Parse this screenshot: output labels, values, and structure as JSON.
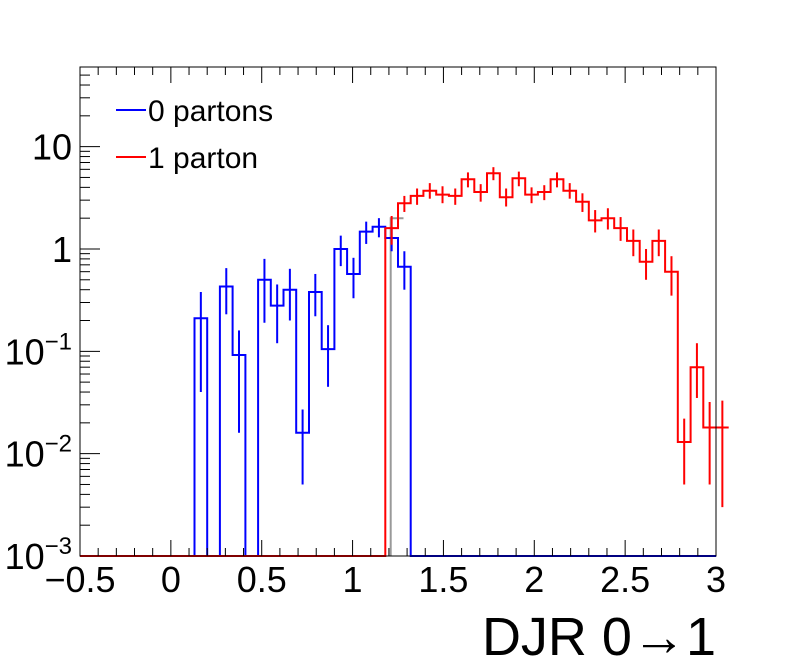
{
  "chart_data": {
    "type": "step-histogram",
    "xlabel": "DJR 0→1",
    "ylabel": "",
    "xlim": [
      -0.5,
      3.0
    ],
    "ylim": [
      0.001,
      60
    ],
    "yscale": "log",
    "grid": false,
    "legend_position": "top-left",
    "bin_width": 0.07,
    "x_ticks": [
      "−0.5",
      "0",
      "0.5",
      "1",
      "1.5",
      "2",
      "2.5",
      "3"
    ],
    "x_tick_values": [
      -0.5,
      0,
      0.5,
      1,
      1.5,
      2,
      2.5,
      3
    ],
    "y_ticks": [
      {
        "value": 0.001,
        "base": "10",
        "exp": "−3"
      },
      {
        "value": 0.01,
        "base": "10",
        "exp": "−2"
      },
      {
        "value": 0.1,
        "base": "10",
        "exp": "−1"
      },
      {
        "value": 1,
        "base": "1",
        "exp": ""
      },
      {
        "value": 10,
        "base": "10",
        "exp": ""
      }
    ],
    "series": [
      {
        "name": "0 partons",
        "color": "#0000ff",
        "x_start": -0.5,
        "values": [
          0.001,
          0.001,
          0.001,
          0.001,
          0.001,
          0.001,
          0.001,
          0.001,
          0.001,
          0.21,
          0.001,
          0.43,
          0.092,
          0.001,
          0.5,
          0.28,
          0.4,
          0.016,
          0.38,
          0.105,
          1.0,
          0.57,
          1.48,
          1.65,
          1.28,
          0.67,
          0.001,
          0.001,
          0.001,
          0.001,
          0.001,
          0.001,
          0.001,
          0.001,
          0.001,
          0.001,
          0.001,
          0.001,
          0.001,
          0.001,
          0.001,
          0.001,
          0.001,
          0.001,
          0.001,
          0.001,
          0.001,
          0.001,
          0.001,
          0.001
        ],
        "errors": [
          [
            0.21,
            0.04,
            0.38
          ],
          [
            0.43,
            0.23,
            0.65
          ],
          [
            0.092,
            0.016,
            0.16
          ],
          [
            0.5,
            0.19,
            0.8
          ],
          [
            0.28,
            0.12,
            0.45
          ],
          [
            0.4,
            0.2,
            0.64
          ],
          [
            0.016,
            0.005,
            0.027
          ],
          [
            0.38,
            0.22,
            0.57
          ],
          [
            0.105,
            0.045,
            0.18
          ],
          [
            1.0,
            0.68,
            1.35
          ],
          [
            0.57,
            0.33,
            0.82
          ],
          [
            1.48,
            1.12,
            1.85
          ],
          [
            1.65,
            1.3,
            2.0
          ],
          [
            1.28,
            0.95,
            1.62
          ],
          [
            0.67,
            0.4,
            0.95
          ]
        ]
      },
      {
        "name": "1 parton",
        "color": "#ff0000",
        "x_start": -0.5,
        "values": [
          0.001,
          0.001,
          0.001,
          0.001,
          0.001,
          0.001,
          0.001,
          0.001,
          0.001,
          0.001,
          0.001,
          0.001,
          0.001,
          0.001,
          0.001,
          0.001,
          0.001,
          0.001,
          0.001,
          0.001,
          0.001,
          0.001,
          0.001,
          0.001,
          1.6,
          2.8,
          3.3,
          3.7,
          3.4,
          3.3,
          4.8,
          3.6,
          5.5,
          3.2,
          4.9,
          3.4,
          3.6,
          4.8,
          3.7,
          2.9,
          1.9,
          2.0,
          1.6,
          1.2,
          0.75,
          1.2,
          0.6,
          0.013,
          0.07,
          0.018,
          0.018
        ],
        "errors": [
          [
            1.6,
            1.1,
            2.1
          ],
          [
            2.8,
            2.3,
            3.3
          ],
          [
            3.3,
            2.7,
            3.9
          ],
          [
            3.7,
            3.1,
            4.4
          ],
          [
            3.4,
            2.8,
            4.1
          ],
          [
            3.3,
            2.7,
            3.9
          ],
          [
            4.8,
            4.0,
            5.6
          ],
          [
            3.6,
            2.9,
            4.3
          ],
          [
            5.5,
            4.7,
            6.3
          ],
          [
            3.2,
            2.6,
            3.9
          ],
          [
            4.9,
            4.1,
            5.7
          ],
          [
            3.4,
            2.8,
            4.0
          ],
          [
            3.6,
            3.0,
            4.2
          ],
          [
            4.8,
            4.0,
            5.6
          ],
          [
            3.7,
            3.1,
            4.4
          ],
          [
            2.9,
            2.3,
            3.5
          ],
          [
            1.9,
            1.45,
            2.4
          ],
          [
            2.0,
            1.55,
            2.5
          ],
          [
            1.6,
            1.2,
            2.05
          ],
          [
            1.2,
            0.85,
            1.55
          ],
          [
            0.75,
            0.5,
            1.0
          ],
          [
            1.2,
            0.85,
            1.55
          ],
          [
            0.6,
            0.35,
            0.85
          ],
          [
            0.013,
            0.005,
            0.022
          ],
          [
            0.07,
            0.035,
            0.12
          ],
          [
            0.018,
            0.005,
            0.032
          ],
          [
            0.018,
            0.003,
            0.033
          ]
        ]
      },
      {
        "name": "",
        "color": "#999999",
        "x_start": 1.21,
        "values": [
          2.0
        ]
      }
    ]
  },
  "legend": {
    "items": [
      {
        "label": "0 partons",
        "color": "#0000ff"
      },
      {
        "label": "1 parton",
        "color": "#ff0000"
      }
    ]
  }
}
